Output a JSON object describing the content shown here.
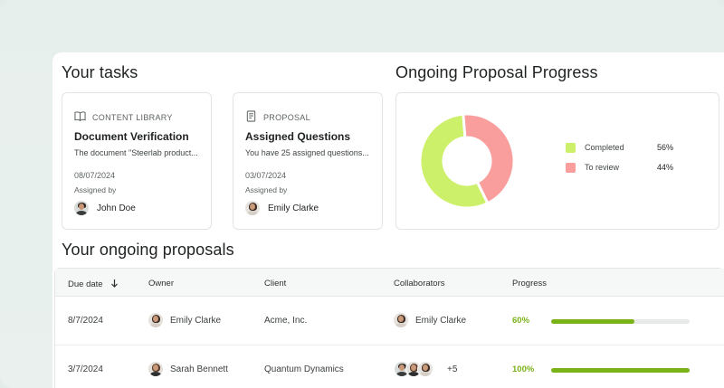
{
  "tasks_heading": "Your tasks",
  "progress_heading": "Ongoing Proposal Progress",
  "proposals_heading": "Your ongoing proposals",
  "tasks": [
    {
      "type_label": "CONTENT LIBRARY",
      "type_icon": "book-icon",
      "title": "Document Verification",
      "description": "The document \"Steerlab product...",
      "date": "08/07/2024",
      "assigned_label": "Assigned by",
      "assignee": "John Doe"
    },
    {
      "type_label": "PROPOSAL",
      "type_icon": "document-icon",
      "title": "Assigned Questions",
      "description": "You have 25 assigned questions...",
      "date": "03/07/2024",
      "assigned_label": "Assigned by",
      "assignee": "Emily Clarke"
    }
  ],
  "chart_data": {
    "type": "pie",
    "categories": [
      "Completed",
      "To review"
    ],
    "values": [
      56,
      44
    ],
    "colors": [
      "#cdf06a",
      "#f99d9d"
    ],
    "value_labels": [
      "56%",
      "44%"
    ]
  },
  "table": {
    "headers": {
      "due_date": "Due date",
      "owner": "Owner",
      "client": "Client",
      "collaborators": "Collaborators",
      "progress": "Progress"
    },
    "sort_icon": "arrow-down-icon",
    "rows": [
      {
        "due_date": "8/7/2024",
        "owner": "Emily Clarke",
        "client": "Acme, Inc.",
        "collaborators": "Emily Clarke",
        "progress_label": "60%",
        "progress": 0.6
      },
      {
        "due_date": "3/7/2024",
        "owner": "Sarah Bennett",
        "client": "Quantum Dynamics",
        "collaborators": "+5",
        "progress_label": "100%",
        "progress": 1.0
      }
    ]
  },
  "colors": {
    "accent_green": "#7ab317",
    "completed": "#cdf06a",
    "to_review": "#f99d9d"
  }
}
